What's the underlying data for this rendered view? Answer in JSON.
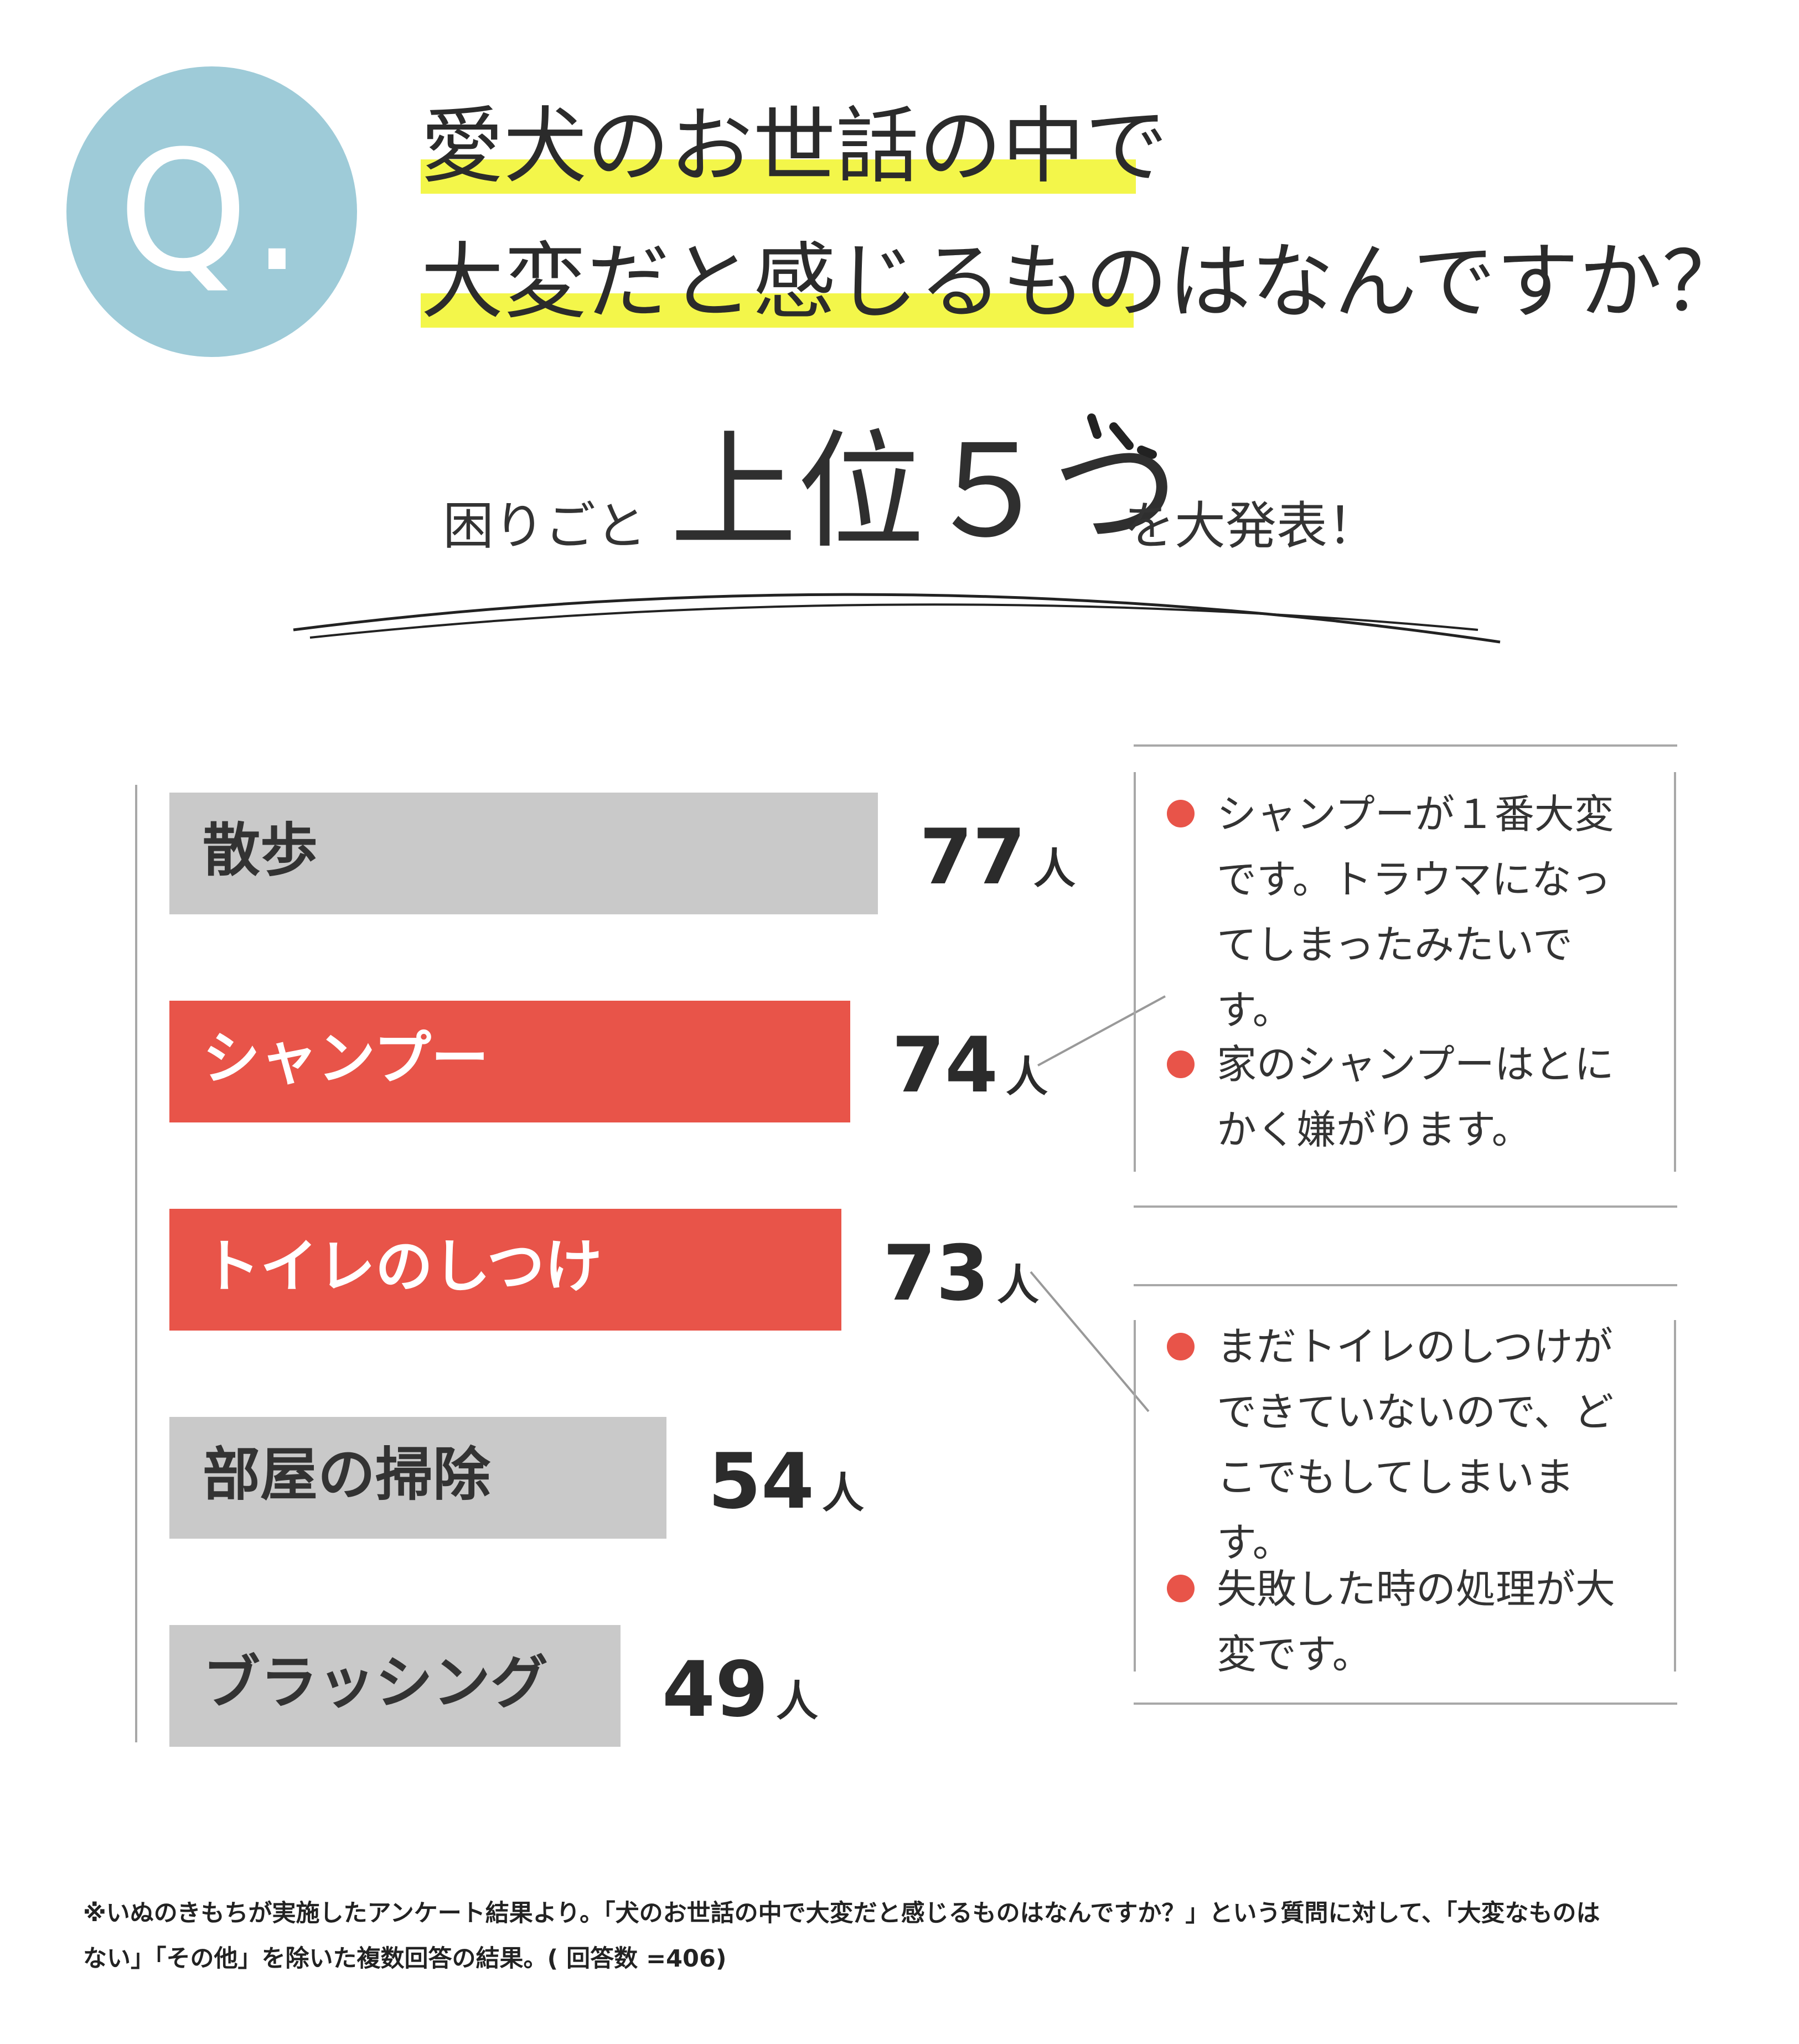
{
  "header": {
    "q_mark": "Q.",
    "title_line1": "愛犬のお世話の中で",
    "title_line2": "大変だと感じるものはなんですか？",
    "subtitle_prefix": "困りごと",
    "subtitle_big": "上位５つ",
    "subtitle_suffix": "を大発表！",
    "highlight_color": "#f3f64a",
    "circle_color": "#9ecbd8"
  },
  "chart_data": {
    "type": "bar",
    "orientation": "horizontal",
    "categories": [
      "散歩",
      "シャンプー",
      "トイレのしつけ",
      "部屋の掃除",
      "ブラッシング"
    ],
    "values": [
      77,
      74,
      73,
      54,
      49
    ],
    "unit": "人",
    "highlighted": [
      false,
      true,
      true,
      false,
      false
    ],
    "colors": {
      "default": "#c9c9c9",
      "highlight": "#e85449"
    },
    "xlim": [
      0,
      77
    ]
  },
  "comments": {
    "shampoo": [
      "シャンプーが１番大変です。トラウマになってしまったみたいです。",
      "家のシャンプーはとにかく嫌がります。"
    ],
    "toilet": [
      "まだトイレのしつけができていないので、どこでもしてしまいます。",
      "失敗した時の処理が大変です。"
    ]
  },
  "footnote": {
    "line1": "※いぬのきもちが実施したアンケート結果より。「犬のお世話の中で大変だと感じるものはなんですか？」という質問に対して、「大変なものは",
    "line2": "ない」「その他」を除いた複数回答の結果。( 回答数 =406)"
  }
}
